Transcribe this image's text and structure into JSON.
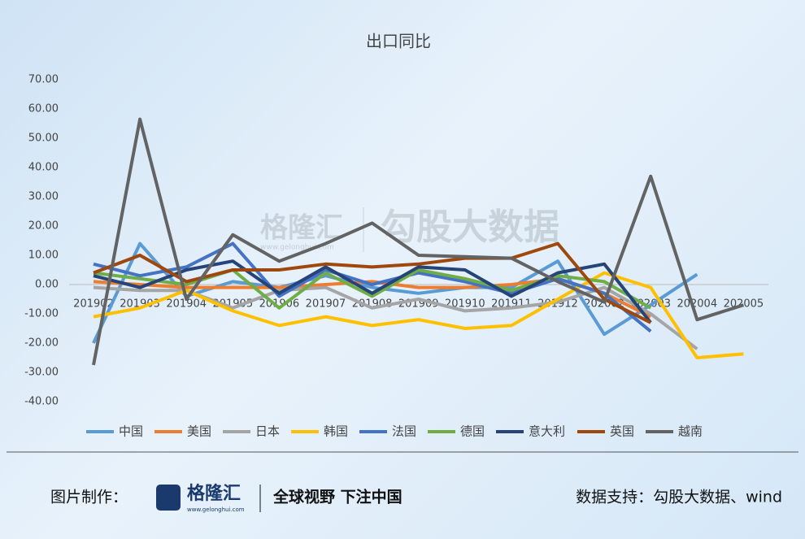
{
  "chart_data": {
    "type": "line",
    "title": "出口同比",
    "categories": [
      "201902",
      "201903",
      "201904",
      "201905",
      "201906",
      "201907",
      "201908",
      "201909",
      "201910",
      "201911",
      "201912",
      "202002",
      "202003",
      "202004",
      "202005"
    ],
    "series": [
      {
        "name": "中国",
        "color": "#5b9bd5",
        "values": [
          -20,
          14,
          -4,
          1,
          -1,
          3,
          -1,
          -3,
          -1,
          -1,
          8,
          -17,
          -7,
          3.5,
          null
        ]
      },
      {
        "name": "美国",
        "color": "#ed7d31",
        "values": [
          1,
          0,
          -1,
          -1,
          -1,
          0,
          1,
          -1,
          -1,
          0,
          2,
          -3,
          -11,
          null,
          null
        ]
      },
      {
        "name": "日本",
        "color": "#a5a5a5",
        "values": [
          -1,
          -2,
          -2,
          -8,
          -2,
          -1,
          -8,
          -5,
          -9,
          -8,
          -6,
          -1,
          -10,
          -22,
          null
        ]
      },
      {
        "name": "韩国",
        "color": "#ffc000",
        "values": [
          -11,
          -8,
          -2,
          -9,
          -14,
          -11,
          -14,
          -12,
          -15,
          -14,
          -5,
          4,
          -1,
          -25,
          -23.7
        ]
      },
      {
        "name": "法国",
        "color": "#4472c4",
        "values": [
          7,
          3,
          6,
          14,
          -4,
          5,
          0,
          4,
          1,
          -3,
          2,
          -3,
          -16,
          null,
          null
        ]
      },
      {
        "name": "德国",
        "color": "#70ad47",
        "values": [
          4,
          2,
          0,
          5,
          -8,
          4,
          -4,
          5,
          2,
          -2,
          3,
          1,
          -8,
          null,
          null
        ]
      },
      {
        "name": "意大利",
        "color": "#264478",
        "values": [
          3,
          -1,
          5,
          8,
          -3,
          6,
          -3,
          6,
          5,
          -4,
          4,
          7,
          -13,
          null,
          null
        ]
      },
      {
        "name": "英国",
        "color": "#9e480e",
        "values": [
          4,
          10,
          1,
          5,
          5,
          7,
          6,
          7,
          9,
          9,
          14,
          -5,
          -13,
          null,
          null
        ]
      },
      {
        "name": "越南",
        "color": "#636363",
        "values": [
          -27.5,
          56.5,
          -5,
          17,
          8,
          14,
          21,
          10,
          9.5,
          9,
          1,
          -6,
          37,
          -12,
          -7
        ]
      }
    ],
    "ylim": [
      -40,
      70
    ],
    "yticks": [
      {
        "value": 70,
        "label": "70.00"
      },
      {
        "value": 60,
        "label": "60.00"
      },
      {
        "value": 50,
        "label": "50.00"
      },
      {
        "value": 40,
        "label": "40.00"
      },
      {
        "value": 30,
        "label": "30.00"
      },
      {
        "value": 20,
        "label": "20.00"
      },
      {
        "value": 10,
        "label": "10.00"
      },
      {
        "value": 0,
        "label": "0.00"
      },
      {
        "value": -10,
        "label": "-10.00"
      },
      {
        "value": -20,
        "label": "-20.00"
      },
      {
        "value": -30,
        "label": "-30.00"
      },
      {
        "value": -40,
        "label": "-40.00"
      }
    ],
    "legend": "bottom"
  },
  "watermark": {
    "brand": "格隆汇",
    "site": "www.gelonghui.com",
    "partner": "勾股大数据"
  },
  "footer": {
    "credit": "图片制作：",
    "brand": "格隆汇",
    "site": "www.gelonghui.com",
    "slogan": "全球视野 下注中国",
    "source": "数据支持：勾股大数据、wind"
  }
}
